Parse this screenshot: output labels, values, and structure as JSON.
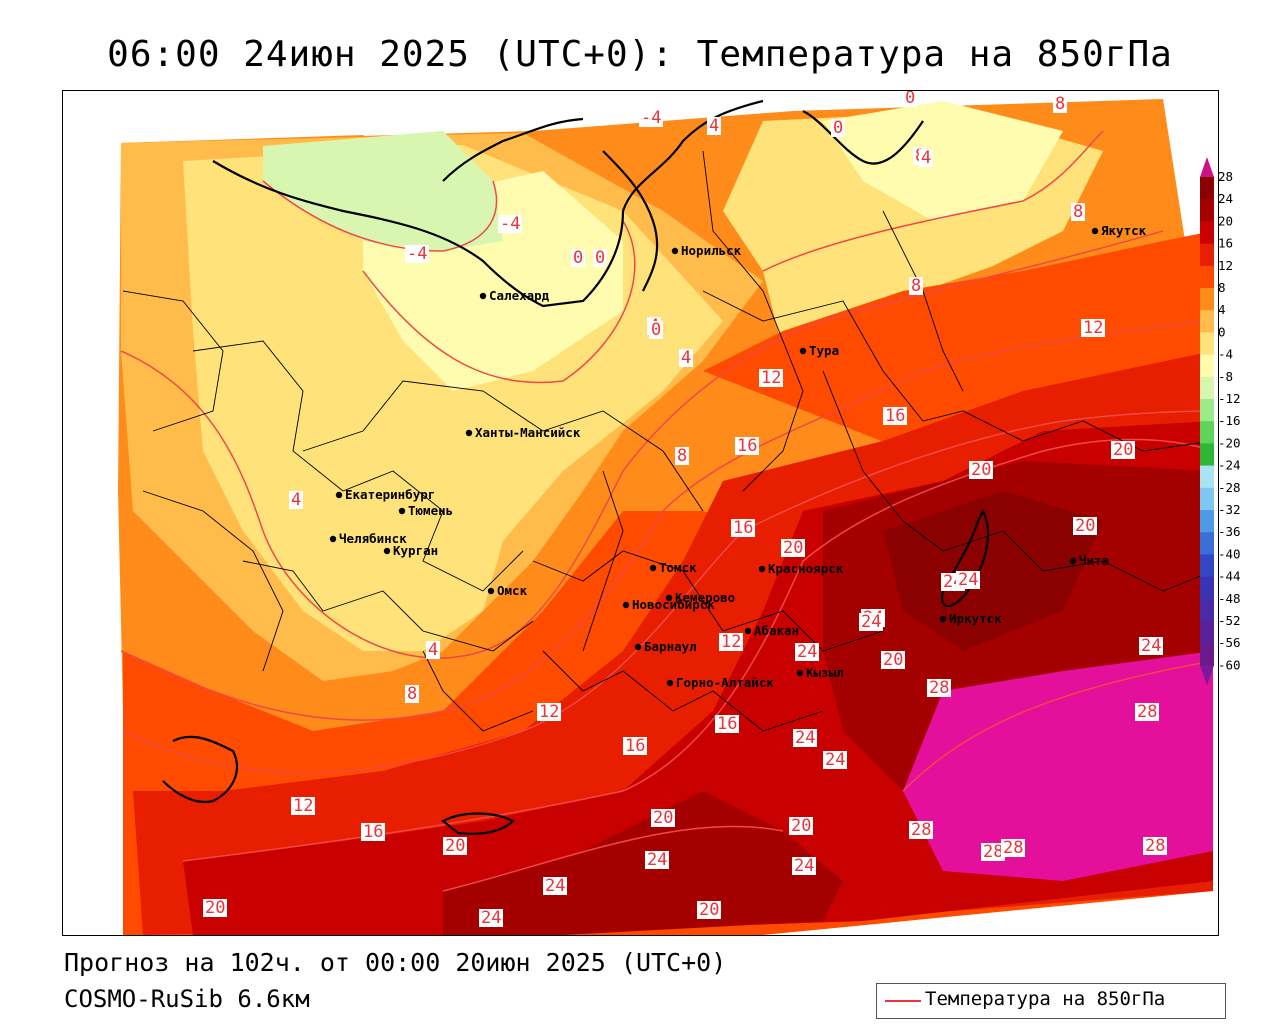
{
  "title": "06:00 24июн 2025 (UTC+0): Температура на 850гПа",
  "footer": {
    "forecast": "Прогноз на 102ч. от 00:00 20июн 2025 (UTC+0)",
    "model": "COSMO-RuSib 6.6км"
  },
  "legend": {
    "label": "Температура на 850гПа",
    "line_color": "#e8343a"
  },
  "colorbar": {
    "ticks": [
      "28",
      "24",
      "20",
      "16",
      "12",
      "8",
      "4",
      "0",
      "-4",
      "-8",
      "-12",
      "-16",
      "-20",
      "-24",
      "-28",
      "-32",
      "-36",
      "-40",
      "-44",
      "-48",
      "-52",
      "-56",
      "-60"
    ],
    "colors": [
      "#8b0000",
      "#a50000",
      "#c80000",
      "#e81e00",
      "#ff4b00",
      "#ff8c1a",
      "#ffbc4a",
      "#ffe27a",
      "#fffcb0",
      "#d8f6b0",
      "#9beb8a",
      "#5ed45a",
      "#2fb637",
      "#a9e4f5",
      "#7cc8f0",
      "#4f9ae6",
      "#3a6fd8",
      "#3548c4",
      "#3a34b5",
      "#4a2aa8",
      "#5a2298",
      "#6a1a8a"
    ],
    "top_color": "#cc1188",
    "bottom_color": "#7a1a9a"
  },
  "cities": [
    {
      "name": "Норильск"
    },
    {
      "name": "Якутск"
    },
    {
      "name": "Салехард"
    },
    {
      "name": "Тура"
    },
    {
      "name": "Ханты-Мансийск"
    },
    {
      "name": "Екатеринбург"
    },
    {
      "name": "Тюмень"
    },
    {
      "name": "Челябинск"
    },
    {
      "name": "Курган"
    },
    {
      "name": "Омск"
    },
    {
      "name": "Новосибирск"
    },
    {
      "name": "Томск"
    },
    {
      "name": "Красноярск"
    },
    {
      "name": "Кемерово"
    },
    {
      "name": "Барнаул"
    },
    {
      "name": "Абакан"
    },
    {
      "name": "Горно-Алтайск"
    },
    {
      "name": "Кызыл"
    },
    {
      "name": "Иркутск"
    },
    {
      "name": "Чита"
    }
  ],
  "isotherm_labels": [
    "0",
    "8",
    "-4",
    "0",
    "4",
    "8",
    "-4",
    "0",
    "0",
    "4",
    "-4",
    "4",
    "8",
    "0",
    "8",
    "12",
    "4",
    "12",
    "16",
    "16",
    "8",
    "20",
    "20",
    "4",
    "16",
    "20",
    "4",
    "24",
    "24",
    "8",
    "12",
    "12",
    "24",
    "24",
    "16",
    "16",
    "24",
    "28",
    "28",
    "12",
    "24",
    "20",
    "24",
    "16",
    "20",
    "28",
    "20",
    "24",
    "24",
    "28",
    "28",
    "20",
    "20",
    "24",
    "24",
    "20",
    "24",
    "20",
    "28"
  ]
}
